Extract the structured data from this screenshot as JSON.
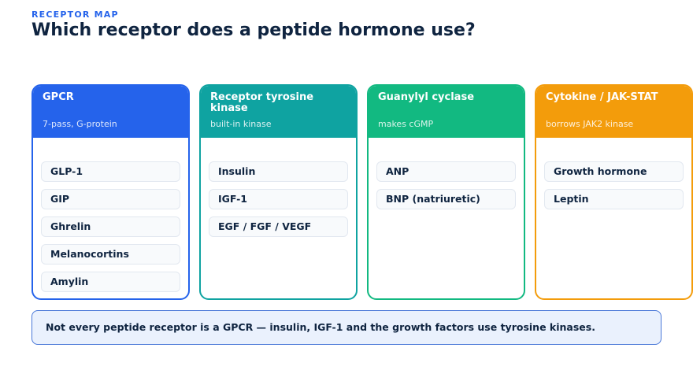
{
  "header": {
    "eyebrow": "RECEPTOR MAP",
    "title": "Which receptor does a peptide hormone use?"
  },
  "columns": [
    {
      "title": "GPCR",
      "subtitle": "7-pass, G-protein",
      "color": "#2563eb",
      "items": [
        "GLP-1",
        "GIP",
        "Ghrelin",
        "Melanocortins",
        "Amylin"
      ]
    },
    {
      "title": "Receptor tyrosine kinase",
      "subtitle": "built-in kinase",
      "color": "#0fa3a1",
      "items": [
        "Insulin",
        "IGF-1",
        "EGF / FGF / VEGF"
      ]
    },
    {
      "title": "Guanylyl cyclase",
      "subtitle": "makes cGMP",
      "color": "#12b981",
      "items": [
        "ANP",
        "BNP (natriuretic)"
      ]
    },
    {
      "title": "Cytokine / JAK-STAT",
      "subtitle": "borrows JAK2 kinase",
      "color": "#f39c0b",
      "items": [
        "Growth hormone",
        "Leptin"
      ]
    }
  ],
  "note": "Not every peptide receptor is a GPCR — insulin, IGF-1 and the growth factors use tyrosine kinases."
}
